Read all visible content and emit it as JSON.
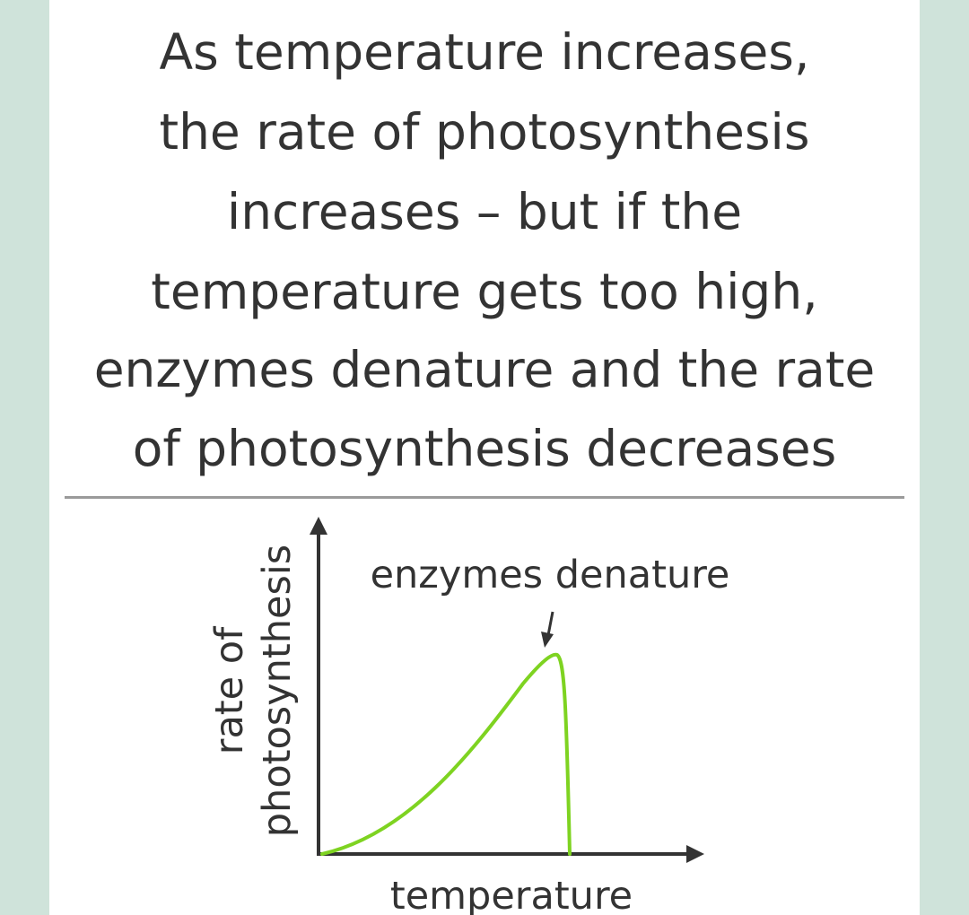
{
  "statement": {
    "lines": [
      "As temperature increases,",
      "the rate of photosynthesis",
      "increases – but if the",
      "temperature gets too high,",
      "enzymes denature and the rate",
      "of photosynthesis decreases"
    ]
  },
  "graph": {
    "y_axis_label_line1": "rate of",
    "y_axis_label_line2": "photosynthesis",
    "x_axis_label": "temperature",
    "annotation": "enzymes denature",
    "colors": {
      "curve": "#7ed321",
      "axes": "#333333",
      "divider": "#9a9a9a",
      "background": "#cfe3da"
    }
  }
}
